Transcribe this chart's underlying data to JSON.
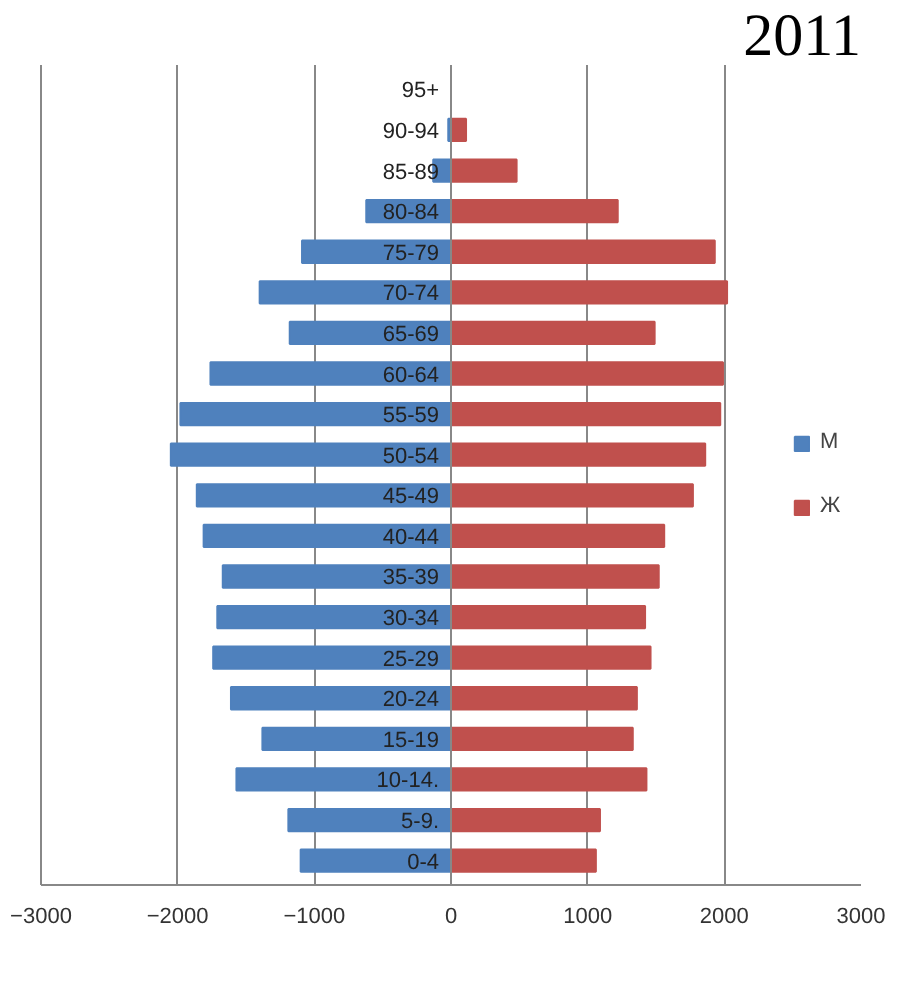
{
  "chart_data": {
    "type": "bar",
    "orientation": "horizontal",
    "stacked": true,
    "title": "2011",
    "categories": [
      "95+",
      "90-94",
      "85-89",
      "80-84",
      "75-79",
      "70-74",
      "65-69",
      "60-64",
      "55-59",
      "50-54",
      "45-49",
      "40-44",
      "35-39",
      "30-34",
      "25-29",
      "20-24",
      "15-19",
      "10-14.",
      "5-9.",
      "0-4"
    ],
    "series": [
      {
        "name": "М",
        "color": "#4f81bd",
        "values": [
          0,
          -20,
          -130,
          -620,
          -1090,
          -1400,
          -1180,
          -1760,
          -1980,
          -2050,
          -1860,
          -1810,
          -1670,
          -1710,
          -1740,
          -1610,
          -1380,
          -1570,
          -1190,
          -1100
        ]
      },
      {
        "name": "Ж",
        "color": "#c0504d",
        "values": [
          0,
          110,
          480,
          1220,
          1930,
          2020,
          1490,
          1990,
          1970,
          1860,
          1770,
          1560,
          1520,
          1420,
          1460,
          1360,
          1330,
          1430,
          1090,
          1060
        ]
      }
    ],
    "xlim": [
      -3000,
      3000
    ],
    "xticks": [
      -3000,
      -2000,
      -1000,
      0,
      1000,
      2000,
      3000
    ],
    "grid": "x",
    "legend": "right"
  }
}
